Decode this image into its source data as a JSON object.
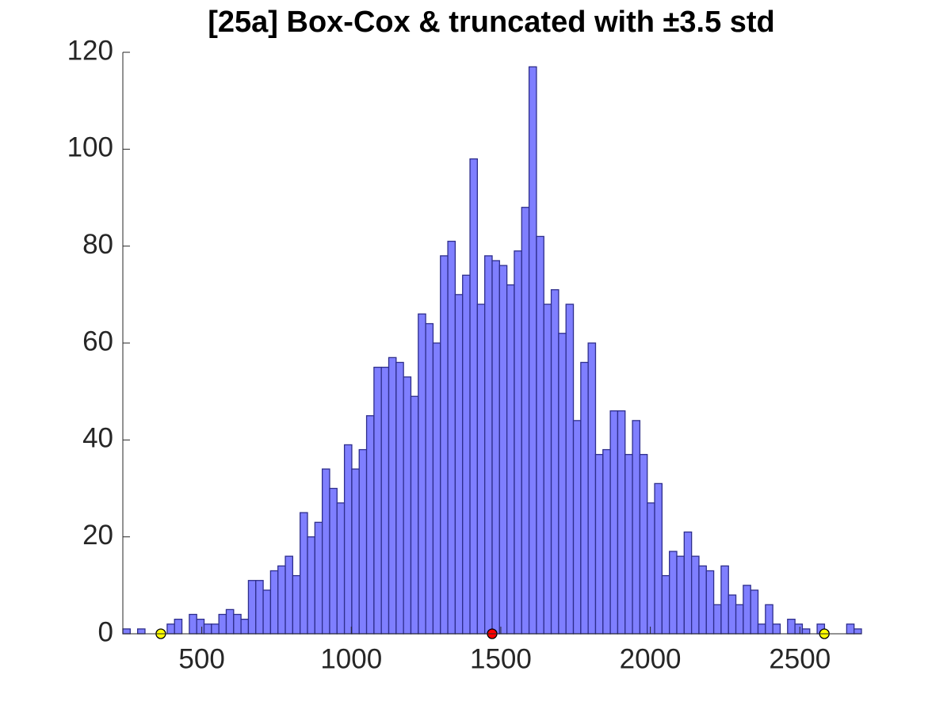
{
  "chart_data": {
    "type": "histogram",
    "title": "[25a] Box-Cox & truncated with ±3.5 std",
    "bins": [
      236,
      260.7,
      285.4,
      310.1,
      334.8,
      359.5,
      384.2,
      408.9,
      433.6,
      458.3,
      483,
      507.7,
      532.4,
      557.1,
      581.8,
      606.5,
      631.2,
      655.9,
      680.6,
      705.3,
      730,
      754.7,
      779.4,
      804.1,
      828.8,
      853.5,
      878.2,
      902.9,
      927.6,
      952.3,
      977,
      1001.7,
      1026.4,
      1051.1,
      1075.8,
      1100.5,
      1125.2,
      1149.9,
      1174.6,
      1199.3,
      1224,
      1248.7,
      1273.4,
      1298.1,
      1322.8,
      1347.5,
      1372.2,
      1396.9,
      1421.6,
      1446.3,
      1471,
      1495.7,
      1520.4,
      1545.1,
      1569.8,
      1594.5,
      1619.2,
      1643.9,
      1668.6,
      1693.3,
      1718,
      1742.7,
      1767.4,
      1792.1,
      1816.8,
      1841.5,
      1866.2,
      1890.9,
      1915.6,
      1940.3,
      1965,
      1989.7,
      2014.4,
      2039.1,
      2063.8,
      2088.5,
      2113.2,
      2137.9,
      2162.6,
      2187.3,
      2212,
      2236.7,
      2261.4,
      2286.1,
      2310.8,
      2335.5,
      2360.2,
      2384.9,
      2409.6,
      2434.3,
      2459,
      2483.7,
      2508.4,
      2533.1,
      2557.8,
      2582.5,
      2607.2,
      2631.9,
      2656.6,
      2681.3,
      2706
    ],
    "values": [
      1,
      0,
      1,
      0,
      0,
      0,
      2,
      3,
      0,
      4,
      3,
      2,
      2,
      4,
      5,
      4,
      3,
      11,
      11,
      9,
      13,
      14,
      16,
      12,
      25,
      20,
      23,
      34,
      30,
      27,
      39,
      34,
      38,
      45,
      55,
      55,
      57,
      56,
      53,
      49,
      66,
      64,
      60,
      78,
      81,
      70,
      74,
      98,
      68,
      78,
      77,
      76,
      72,
      79,
      88,
      117,
      82,
      68,
      71,
      62,
      68,
      44,
      56,
      60,
      37,
      38,
      46,
      46,
      37,
      44,
      37,
      27,
      31,
      12,
      17,
      16,
      21,
      16,
      14,
      13,
      6,
      14,
      8,
      6,
      10,
      9,
      2,
      6,
      2,
      0,
      3,
      2,
      1,
      0,
      2,
      0,
      0,
      0,
      2,
      1
    ],
    "color": "#7f7fff",
    "edgecolor": "#2e2e8c",
    "xlim": [
      236,
      2706
    ],
    "xticks": [
      500,
      1000,
      1500,
      2000,
      2500
    ],
    "ylim": [
      0,
      120
    ],
    "yticks": [
      0,
      20,
      40,
      60,
      80,
      100,
      120
    ],
    "markers": {
      "x": [
        363,
        1471,
        2582
      ],
      "y": [
        0,
        0,
        0
      ],
      "colors": [
        "#ffff00",
        "#ff0000",
        "#ffff00"
      ]
    }
  }
}
